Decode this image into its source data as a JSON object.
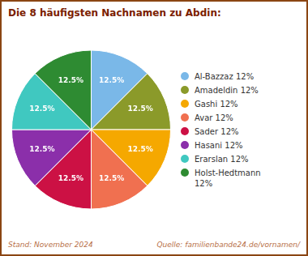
{
  "chart_data": {
    "type": "pie",
    "title": "Die 8 häufigsten Nachnamen zu Abdin:",
    "categories": [
      "Al-Bazzaz 12%",
      "Amadeldin 12%",
      "Gashi 12%",
      "Avar 12%",
      "Sader 12%",
      "Hasani 12%",
      "Erarslan 12%",
      "Holst-Hedtmann\n12%"
    ],
    "values": [
      12.5,
      12.5,
      12.5,
      12.5,
      12.5,
      12.5,
      12.5,
      12.5
    ],
    "value_labels": [
      "12.5%",
      "12.5%",
      "12.5%",
      "12.5%",
      "12.5%",
      "12.5%",
      "12.5%",
      "12.5%"
    ],
    "colors": [
      "#7ab8e8",
      "#8b9a2a",
      "#f5a800",
      "#f07050",
      "#cc1144",
      "#8b2faa",
      "#40c8c0",
      "#2e8b32"
    ],
    "data_labels": true,
    "legend": "right",
    "annotations": [
      "Stand: November 2024",
      "Quelle: familienbande24.de/vornamen/"
    ]
  }
}
